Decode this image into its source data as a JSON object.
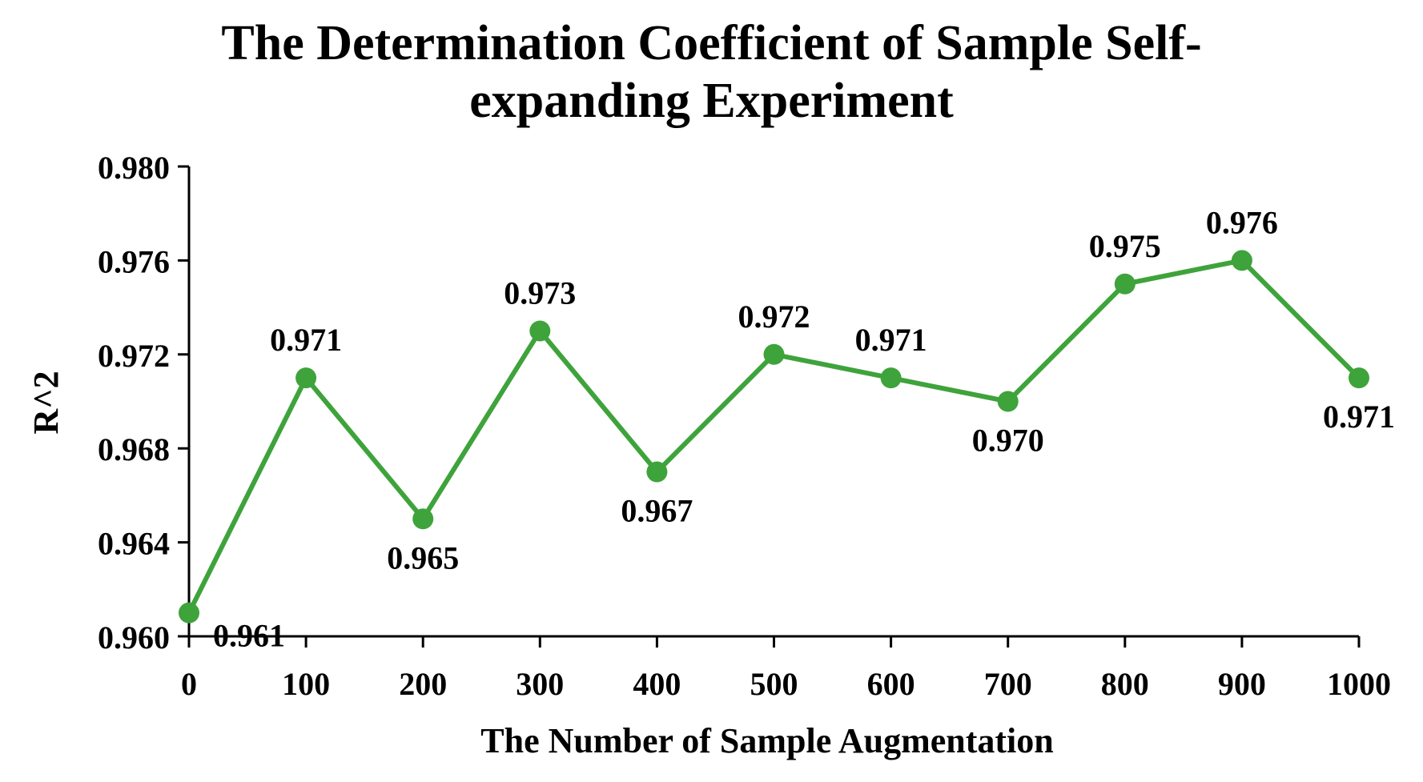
{
  "chart_data": {
    "type": "line",
    "title_line1": "The Determination Coefficient of Sample Self-",
    "title_line2": "expanding Experiment",
    "xlabel": "The Number of Sample Augmentation",
    "ylabel": "R^2",
    "x": [
      0,
      100,
      200,
      300,
      400,
      500,
      600,
      700,
      800,
      900,
      1000
    ],
    "x_tick_labels": [
      "0",
      "100",
      "200",
      "300",
      "400",
      "500",
      "600",
      "700",
      "800",
      "900",
      "1000"
    ],
    "y_ticks": [
      0.96,
      0.964,
      0.968,
      0.972,
      0.976,
      0.98
    ],
    "y_tick_labels": [
      "0.960",
      "0.964",
      "0.968",
      "0.972",
      "0.976",
      "0.980"
    ],
    "ylim": [
      0.96,
      0.98
    ],
    "xlim": [
      0,
      1000
    ],
    "series": [
      {
        "name": "R^2",
        "values": [
          0.961,
          0.971,
          0.965,
          0.973,
          0.967,
          0.972,
          0.971,
          0.97,
          0.975,
          0.976,
          0.971
        ],
        "data_labels": [
          "0.961",
          "0.971",
          "0.965",
          "0.973",
          "0.967",
          "0.972",
          "0.971",
          "0.970",
          "0.975",
          "0.976",
          "0.971"
        ],
        "color": "#3EA33B"
      }
    ],
    "grid": false,
    "legend": "none"
  }
}
